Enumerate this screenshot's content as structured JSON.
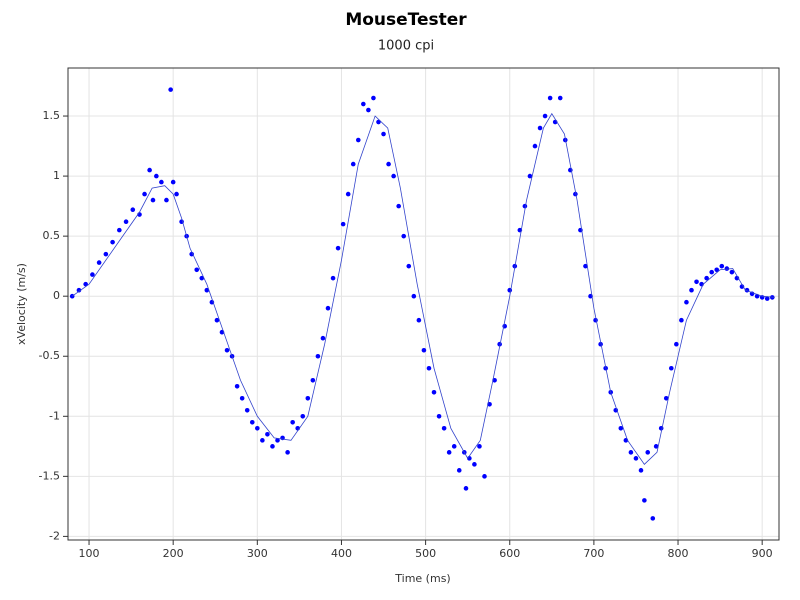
{
  "chart_data": {
    "type": "scatter",
    "title": "MouseTester",
    "subtitle": "1000 cpi",
    "x_label": "Time (ms)",
    "y_label": "xVelocity (m/s)",
    "xlim": [
      75,
      920
    ],
    "ylim": [
      -2.03,
      1.9
    ],
    "xticks": [
      100,
      200,
      300,
      400,
      500,
      600,
      700,
      800,
      900
    ],
    "yticks": [
      -2,
      -1.5,
      -1,
      -0.5,
      0,
      0.5,
      1,
      1.5
    ],
    "grid": true,
    "series": [
      {
        "type": "scatter",
        "color": "#0000ff",
        "x": [
          80,
          88,
          96,
          104,
          112,
          120,
          128,
          136,
          144,
          152,
          160,
          166,
          172,
          176,
          180,
          186,
          192,
          197,
          200,
          204,
          210,
          216,
          222,
          228,
          234,
          240,
          246,
          252,
          258,
          264,
          270,
          276,
          282,
          288,
          294,
          300,
          306,
          312,
          318,
          324,
          330,
          336,
          342,
          348,
          354,
          360,
          366,
          372,
          378,
          384,
          390,
          396,
          402,
          408,
          414,
          420,
          426,
          432,
          438,
          444,
          450,
          456,
          462,
          468,
          474,
          480,
          486,
          492,
          498,
          504,
          510,
          516,
          522,
          528,
          534,
          540,
          546,
          548,
          552,
          558,
          564,
          570,
          576,
          582,
          588,
          594,
          600,
          606,
          612,
          618,
          624,
          630,
          636,
          642,
          648,
          654,
          660,
          666,
          672,
          678,
          684,
          690,
          696,
          702,
          708,
          714,
          720,
          726,
          732,
          738,
          744,
          750,
          756,
          760,
          764,
          770,
          774,
          780,
          786,
          792,
          798,
          804,
          810,
          816,
          822,
          828,
          834,
          840,
          846,
          852,
          858,
          864,
          870,
          876,
          882,
          888,
          894,
          900,
          906,
          912
        ],
        "values": [
          0,
          0.05,
          0.1,
          0.18,
          0.28,
          0.35,
          0.45,
          0.55,
          0.62,
          0.72,
          0.68,
          0.85,
          1.05,
          0.8,
          1.0,
          0.95,
          0.8,
          1.72,
          0.95,
          0.85,
          0.62,
          0.5,
          0.35,
          0.22,
          0.15,
          0.05,
          -0.05,
          -0.2,
          -0.3,
          -0.45,
          -0.5,
          -0.75,
          -0.85,
          -0.95,
          -1.05,
          -1.1,
          -1.2,
          -1.15,
          -1.25,
          -1.2,
          -1.18,
          -1.3,
          -1.05,
          -1.1,
          -1.0,
          -0.85,
          -0.7,
          -0.5,
          -0.35,
          -0.1,
          0.15,
          0.4,
          0.6,
          0.85,
          1.1,
          1.3,
          1.6,
          1.55,
          1.65,
          1.45,
          1.35,
          1.1,
          1.0,
          0.75,
          0.5,
          0.25,
          0,
          -0.2,
          -0.45,
          -0.6,
          -0.8,
          -1.0,
          -1.1,
          -1.3,
          -1.25,
          -1.45,
          -1.3,
          -1.6,
          -1.35,
          -1.4,
          -1.25,
          -1.5,
          -0.9,
          -0.7,
          -0.4,
          -0.25,
          0.05,
          0.25,
          0.55,
          0.75,
          1.0,
          1.25,
          1.4,
          1.5,
          1.65,
          1.45,
          1.65,
          1.3,
          1.05,
          0.85,
          0.55,
          0.25,
          0,
          -0.2,
          -0.4,
          -0.6,
          -0.8,
          -0.95,
          -1.1,
          -1.2,
          -1.3,
          -1.35,
          -1.45,
          -1.7,
          -1.3,
          -1.85,
          -1.25,
          -1.1,
          -0.85,
          -0.6,
          -0.4,
          -0.2,
          -0.05,
          0.05,
          0.12,
          0.1,
          0.15,
          0.2,
          0.22,
          0.25,
          0.23,
          0.2,
          0.15,
          0.08,
          0.05,
          0.02,
          0,
          -0.01,
          -0.02,
          -0.01
        ]
      },
      {
        "type": "line",
        "color": "#3344cc",
        "x": [
          80,
          100,
          120,
          140,
          160,
          175,
          190,
          200,
          210,
          220,
          240,
          260,
          280,
          300,
          320,
          340,
          360,
          380,
          400,
          420,
          440,
          455,
          470,
          490,
          510,
          530,
          550,
          565,
          580,
          600,
          620,
          640,
          650,
          665,
          680,
          700,
          720,
          740,
          760,
          775,
          790,
          810,
          830,
          850,
          865,
          880,
          900,
          915
        ],
        "values": [
          0,
          0.1,
          0.3,
          0.5,
          0.7,
          0.9,
          0.92,
          0.85,
          0.65,
          0.4,
          0.1,
          -0.3,
          -0.7,
          -1.0,
          -1.18,
          -1.2,
          -1.0,
          -0.4,
          0.3,
          1.1,
          1.5,
          1.4,
          0.9,
          0.1,
          -0.6,
          -1.1,
          -1.35,
          -1.2,
          -0.7,
          0,
          0.8,
          1.4,
          1.52,
          1.35,
          0.8,
          -0.1,
          -0.8,
          -1.2,
          -1.4,
          -1.3,
          -0.8,
          -0.2,
          0.1,
          0.22,
          0.23,
          0.05,
          0,
          -0.01
        ]
      }
    ]
  }
}
